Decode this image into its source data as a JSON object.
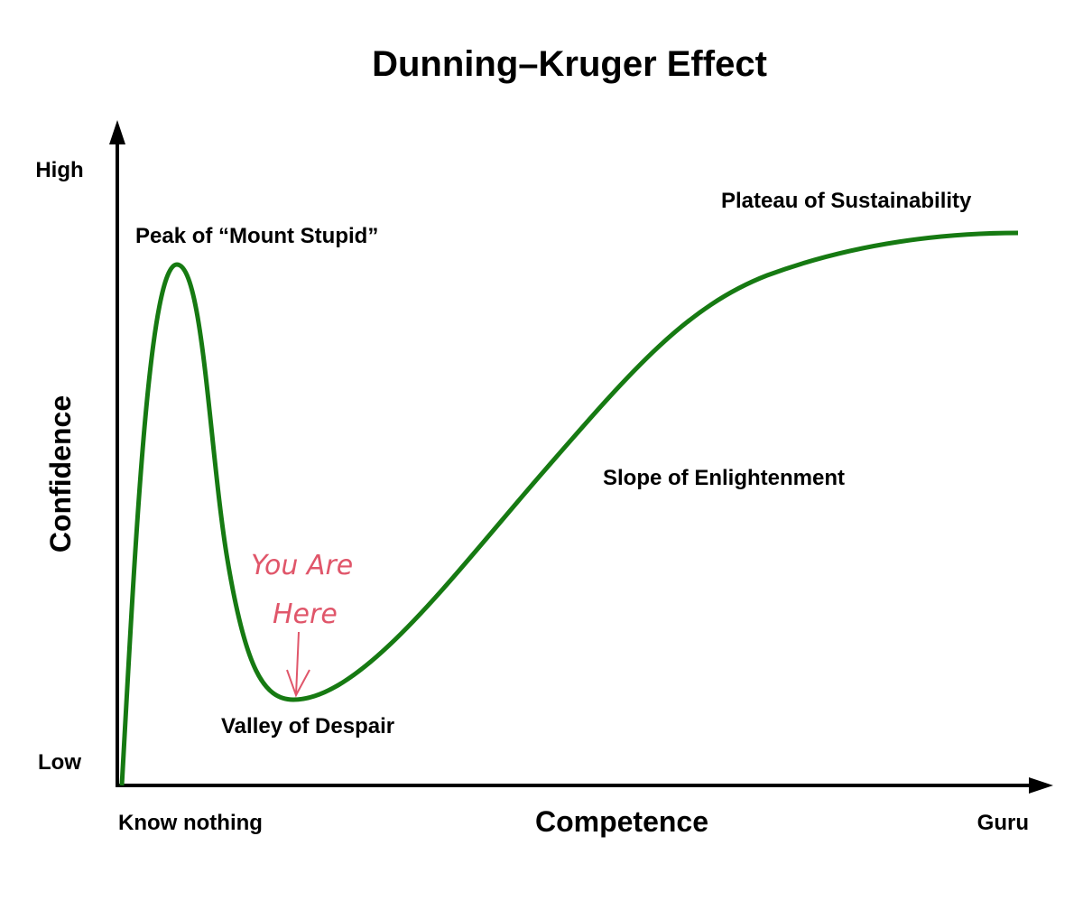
{
  "title": "Dunning–Kruger Effect",
  "y_axis": {
    "label": "Confidence",
    "high": "High",
    "low": "Low"
  },
  "x_axis": {
    "label": "Competence",
    "start": "Know nothing",
    "end": "Guru"
  },
  "annotations": {
    "peak": "Peak of “Mount Stupid”",
    "valley": "Valley of Despair",
    "slope": "Slope of Enlightenment",
    "plateau": "Plateau of Sustainability"
  },
  "handwritten_note": [
    "You Are",
    "Here"
  ]
}
